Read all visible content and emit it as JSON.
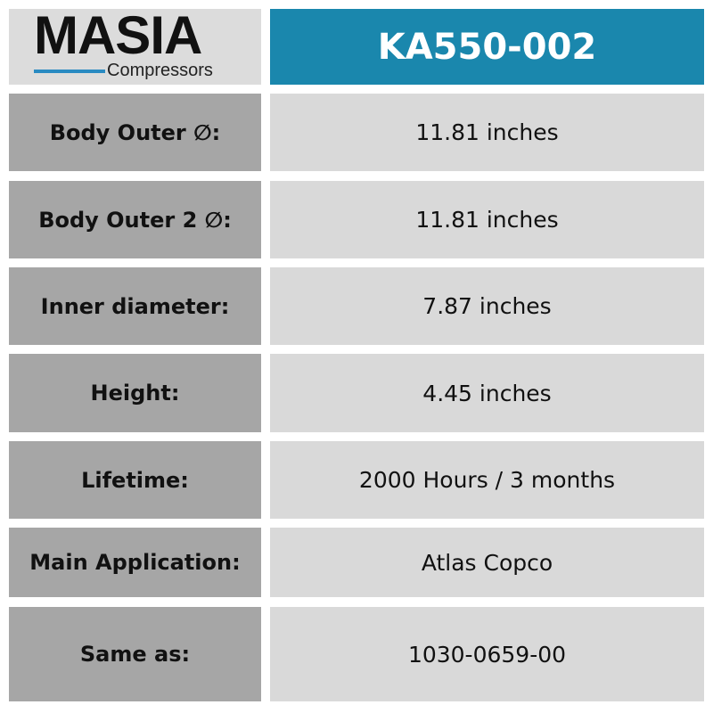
{
  "logo": {
    "brand": "MASIA",
    "tagline": "Compressors",
    "accent": "#2a8bc2"
  },
  "title": "KA550-002",
  "colors": {
    "header": "#1a87ad",
    "label_bg": "#a6a6a6",
    "value_bg": "#d9d9d9"
  },
  "rows": [
    {
      "label": "Body Outer ∅:",
      "value": "11.81 inches"
    },
    {
      "label": "Body Outer 2 ∅:",
      "value": "11.81 inches"
    },
    {
      "label": "Inner diameter:",
      "value": "7.87 inches"
    },
    {
      "label": "Height:",
      "value": "4.45 inches"
    },
    {
      "label": "Lifetime:",
      "value": "2000 Hours / 3 months"
    },
    {
      "label": "Main Application:",
      "value": "Atlas Copco"
    },
    {
      "label": "Same as:",
      "value": "1030-0659-00"
    }
  ]
}
